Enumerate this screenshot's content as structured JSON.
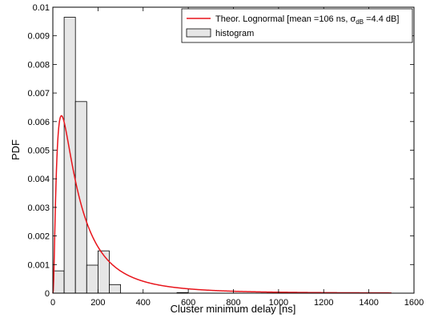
{
  "chart_data": {
    "type": "bar",
    "xlabel": "Cluster minimum delay [ns]",
    "ylabel": "PDF",
    "xlim": [
      0,
      1600
    ],
    "ylim": [
      0,
      0.01
    ],
    "x_ticks": [
      "0",
      "200",
      "400",
      "600",
      "800",
      "1000",
      "1200",
      "1400",
      "1600"
    ],
    "y_ticks": [
      "0",
      "0.001",
      "0.002",
      "0.003",
      "0.004",
      "0.005",
      "0.006",
      "0.007",
      "0.008",
      "0.009",
      "0.01"
    ],
    "grid": false,
    "legend_position": "top-right",
    "colors": {
      "line": "#e8141b",
      "bar_fill": "#e6e6e6",
      "bar_edge": "#000000"
    },
    "histogram": {
      "name": "histogram",
      "bin_width": 50,
      "bins": [
        {
          "x0": 0,
          "x1": 50,
          "value": 0.00078
        },
        {
          "x0": 50,
          "x1": 100,
          "value": 0.00965
        },
        {
          "x0": 100,
          "x1": 150,
          "value": 0.0067
        },
        {
          "x0": 150,
          "x1": 200,
          "value": 0.00098
        },
        {
          "x0": 200,
          "x1": 250,
          "value": 0.00148
        },
        {
          "x0": 250,
          "x1": 300,
          "value": 0.0003
        },
        {
          "x0": 550,
          "x1": 600,
          "value": 2e-05
        },
        {
          "x0": 1050,
          "x1": 1100,
          "value": 3e-05
        }
      ]
    },
    "lognormal": {
      "name_prefix": "Theor. Lognormal [mean =106 ns, σ",
      "name_sub": "dB",
      "name_suffix": " =4.4 dB]",
      "mean_ns": 106,
      "sigma_db": 4.4
    }
  }
}
